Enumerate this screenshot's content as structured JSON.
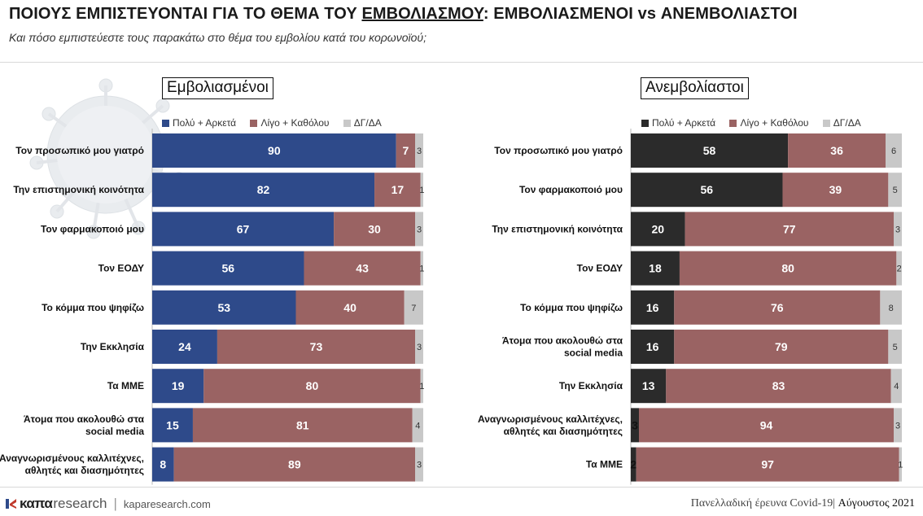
{
  "header": {
    "title_part1": "ΠΟΙΟΥΣ ΕΜΠΙΣΤΕΥΟΝΤΑΙ ΓΙΑ ΤΟ ΘΕΜΑ ΤΟΥ ",
    "title_underlined": "ΕΜΒΟΛΙΑΣΜΟΥ",
    "title_part2": ": ΕΜΒΟΛΙΑΣΜΕΝΟΙ vs ΑΝΕΜΒΟΛΙΑΣΤΟΙ",
    "subtitle": "Και πόσο εμπιστεύεστε τους παρακάτω στο θέμα του εμβολίου κατά του κορωνοϊού;"
  },
  "legend_labels": [
    "Πολύ + Αρκετά",
    "Λίγο + Καθόλου",
    "ΔΓ/ΔΑ"
  ],
  "colors": {
    "vaccinated_high": "#2e4a8a",
    "unvaccinated_high": "#2b2b2b",
    "low": "#9a6363",
    "dk": "#c8c8c8"
  },
  "chart_data": [
    {
      "type": "bar",
      "orientation": "horizontal",
      "stacked": true,
      "title": "Εμβολιασμένοι",
      "categories": [
        "Τον προσωπικό μου γιατρό",
        "Την επιστημονική κοινότητα",
        "Τον φαρμακοποιό μου",
        "Τον ΕΟΔΥ",
        "Το κόμμα που ψηφίζω",
        "Την Εκκλησία",
        "Τα ΜΜΕ",
        "Άτομα που ακολουθώ στα\nsocial media",
        "Αναγνωρισμένους καλλιτέχνες,\nαθλητές και διασημότητες"
      ],
      "series": [
        {
          "name": "Πολύ + Αρκετά",
          "values": [
            90,
            82,
            67,
            56,
            53,
            24,
            19,
            15,
            8
          ]
        },
        {
          "name": "Λίγο + Καθόλου",
          "values": [
            7,
            17,
            30,
            43,
            40,
            73,
            80,
            81,
            89
          ]
        },
        {
          "name": "ΔΓ/ΔΑ",
          "values": [
            3,
            1,
            3,
            1,
            7,
            3,
            1,
            4,
            3
          ]
        }
      ],
      "xlim": [
        0,
        100
      ],
      "legend_position": "top"
    },
    {
      "type": "bar",
      "orientation": "horizontal",
      "stacked": true,
      "title": "Ανεμβολίαστοι",
      "categories": [
        "Τον προσωπικό μου γιατρό",
        "Τον φαρμακοποιό μου",
        "Την επιστημονική κοινότητα",
        "Τον ΕΟΔΥ",
        "Το κόμμα που ψηφίζω",
        "Άτομα που ακολουθώ στα\nsocial media",
        "Την Εκκλησία",
        "Αναγνωρισμένους καλλιτέχνες,\nαθλητές και διασημότητες",
        "Τα ΜΜΕ"
      ],
      "series": [
        {
          "name": "Πολύ + Αρκετά",
          "values": [
            58,
            56,
            20,
            18,
            16,
            16,
            13,
            3,
            2
          ]
        },
        {
          "name": "Λίγο + Καθόλου",
          "values": [
            36,
            39,
            77,
            80,
            76,
            79,
            83,
            94,
            97
          ]
        },
        {
          "name": "ΔΓ/ΔΑ",
          "values": [
            6,
            5,
            3,
            2,
            8,
            5,
            4,
            3,
            1
          ]
        }
      ],
      "xlim": [
        0,
        100
      ],
      "legend_position": "top"
    }
  ],
  "footer": {
    "brand_bold": "καπα",
    "brand_light": "research",
    "separator": "|",
    "site": "kaparesearch.com",
    "survey": "Πανελλαδική έρευνα Covid-19|",
    "month": "Αύγουστος 2021"
  }
}
